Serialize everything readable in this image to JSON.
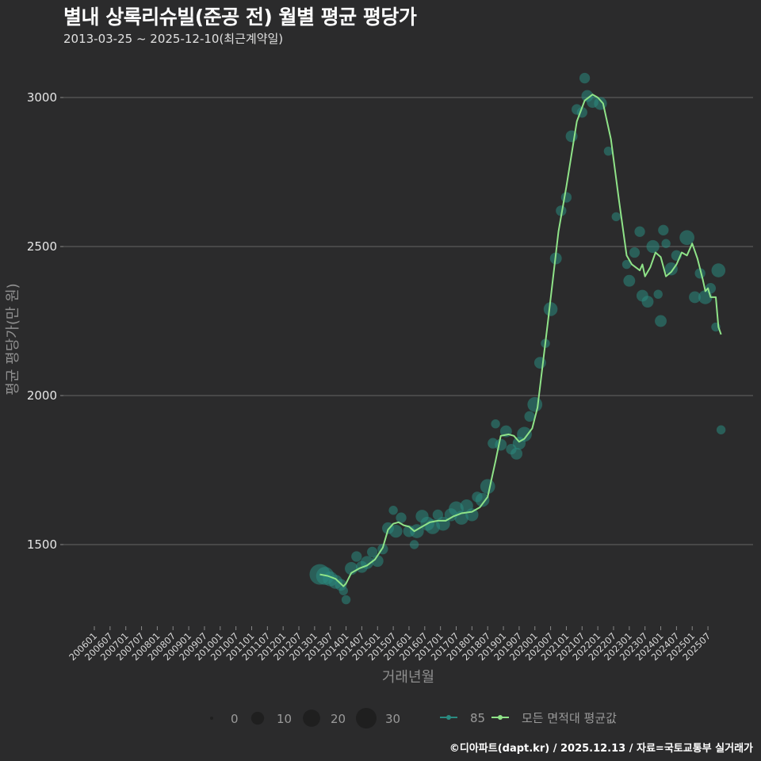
{
  "header": {
    "title": "별내 상록리슈빌(준공 전) 월별 평균 평당가",
    "subtitle": "2013-03-25 ~ 2025-12-10(최근계약일)"
  },
  "caption": "©디아파트(dapt.kr) / 2025.12.13 / 자료=국토교통부 실거래가",
  "colors": {
    "background": "#2b2b2c",
    "grid": "#5a5a5a",
    "avg_line": "#8fe388",
    "points": "#2a8a80"
  },
  "chart_data": {
    "type": "line",
    "title": "별내 상록리슈빌(준공 전) 월별 평균 평당가",
    "subtitle": "2013-03-25 ~ 2025-12-10(최근계약일)",
    "xlabel": "거래년월",
    "ylabel": "평균 평당가(만 원)",
    "ylim": [
      1260,
      3130
    ],
    "yticks": [
      1500,
      2000,
      2500,
      3000
    ],
    "grid": "horizontal major",
    "legend_position": "bottom",
    "xtick_labels": [
      "200601",
      "200607",
      "200701",
      "200707",
      "200801",
      "200807",
      "200901",
      "200907",
      "201001",
      "201007",
      "201101",
      "201107",
      "201201",
      "201207",
      "201301",
      "201307",
      "201401",
      "201407",
      "201501",
      "201507",
      "201601",
      "201607",
      "201701",
      "201707",
      "201801",
      "201807",
      "201901",
      "201907",
      "202001",
      "202007",
      "202101",
      "202107",
      "202201",
      "202207",
      "202301",
      "202307",
      "202401",
      "202407",
      "202501",
      "202507"
    ],
    "size_legend": {
      "title": "",
      "values": [
        0,
        10,
        20,
        30
      ]
    },
    "color_legend": [
      {
        "label": "85",
        "color": "#2a8a80"
      },
      {
        "label": "모든 면적대 평균값",
        "color": "#8fe388"
      }
    ],
    "series": [
      {
        "name": "모든 면적대 평균값",
        "type": "line",
        "x": [
          "2013-03",
          "2013-06",
          "2013-09",
          "2013-12",
          "2014-01",
          "2014-03",
          "2014-06",
          "2014-09",
          "2014-12",
          "2015-03",
          "2015-05",
          "2015-07",
          "2015-09",
          "2015-11",
          "2016-01",
          "2016-03",
          "2016-06",
          "2016-09",
          "2016-12",
          "2017-03",
          "2017-06",
          "2017-09",
          "2018-01",
          "2018-04",
          "2018-07",
          "2018-10",
          "2018-12",
          "2019-03",
          "2019-05",
          "2019-07",
          "2019-09",
          "2019-12",
          "2020-02",
          "2020-06",
          "2020-10",
          "2021-01",
          "2021-05",
          "2021-08",
          "2021-11",
          "2022-01",
          "2022-03",
          "2022-06",
          "2022-09",
          "2022-12",
          "2023-02",
          "2023-05",
          "2023-06",
          "2023-07",
          "2023-09",
          "2023-11",
          "2024-01",
          "2024-03",
          "2024-05",
          "2024-07",
          "2024-09",
          "2024-11",
          "2025-01",
          "2025-03",
          "2025-05",
          "2025-06",
          "2025-07",
          "2025-08",
          "2025-10",
          "2025-11",
          "2025-12"
        ],
        "values": [
          1400,
          1395,
          1385,
          1360,
          1370,
          1405,
          1420,
          1430,
          1450,
          1490,
          1550,
          1570,
          1575,
          1565,
          1560,
          1545,
          1560,
          1575,
          1580,
          1580,
          1595,
          1605,
          1610,
          1625,
          1660,
          1780,
          1865,
          1870,
          1865,
          1845,
          1855,
          1890,
          1960,
          2250,
          2550,
          2700,
          2920,
          2990,
          3010,
          3000,
          2980,
          2860,
          2660,
          2470,
          2440,
          2420,
          2440,
          2400,
          2430,
          2480,
          2465,
          2400,
          2415,
          2440,
          2480,
          2470,
          2510,
          2460,
          2390,
          2350,
          2360,
          2330,
          2330,
          2230,
          2205
        ]
      },
      {
        "name": "85",
        "type": "scatter",
        "points": [
          {
            "x": "2013-03",
            "y": 1400,
            "n": 30
          },
          {
            "x": "2013-05",
            "y": 1395,
            "n": 22
          },
          {
            "x": "2013-07",
            "y": 1385,
            "n": 14
          },
          {
            "x": "2013-09",
            "y": 1375,
            "n": 12
          },
          {
            "x": "2013-11",
            "y": 1365,
            "n": 8
          },
          {
            "x": "2013-12",
            "y": 1345,
            "n": 4
          },
          {
            "x": "2014-01",
            "y": 1315,
            "n": 4
          },
          {
            "x": "2014-03",
            "y": 1420,
            "n": 10
          },
          {
            "x": "2014-05",
            "y": 1460,
            "n": 6
          },
          {
            "x": "2014-07",
            "y": 1425,
            "n": 8
          },
          {
            "x": "2014-09",
            "y": 1440,
            "n": 10
          },
          {
            "x": "2014-11",
            "y": 1475,
            "n": 6
          },
          {
            "x": "2015-01",
            "y": 1445,
            "n": 8
          },
          {
            "x": "2015-03",
            "y": 1485,
            "n": 6
          },
          {
            "x": "2015-05",
            "y": 1555,
            "n": 8
          },
          {
            "x": "2015-07",
            "y": 1615,
            "n": 4
          },
          {
            "x": "2015-08",
            "y": 1545,
            "n": 10
          },
          {
            "x": "2015-10",
            "y": 1590,
            "n": 6
          },
          {
            "x": "2016-01",
            "y": 1545,
            "n": 8
          },
          {
            "x": "2016-03",
            "y": 1500,
            "n": 4
          },
          {
            "x": "2016-04",
            "y": 1545,
            "n": 12
          },
          {
            "x": "2016-06",
            "y": 1595,
            "n": 10
          },
          {
            "x": "2016-08",
            "y": 1570,
            "n": 12
          },
          {
            "x": "2016-10",
            "y": 1560,
            "n": 14
          },
          {
            "x": "2016-12",
            "y": 1600,
            "n": 6
          },
          {
            "x": "2017-02",
            "y": 1570,
            "n": 12
          },
          {
            "x": "2017-05",
            "y": 1600,
            "n": 10
          },
          {
            "x": "2017-07",
            "y": 1620,
            "n": 14
          },
          {
            "x": "2017-09",
            "y": 1590,
            "n": 12
          },
          {
            "x": "2017-11",
            "y": 1630,
            "n": 10
          },
          {
            "x": "2018-01",
            "y": 1600,
            "n": 10
          },
          {
            "x": "2018-03",
            "y": 1660,
            "n": 6
          },
          {
            "x": "2018-05",
            "y": 1650,
            "n": 12
          },
          {
            "x": "2018-07",
            "y": 1695,
            "n": 14
          },
          {
            "x": "2018-09",
            "y": 1840,
            "n": 6
          },
          {
            "x": "2018-10",
            "y": 1905,
            "n": 4
          },
          {
            "x": "2018-12",
            "y": 1835,
            "n": 8
          },
          {
            "x": "2019-02",
            "y": 1880,
            "n": 8
          },
          {
            "x": "2019-04",
            "y": 1820,
            "n": 6
          },
          {
            "x": "2019-06",
            "y": 1805,
            "n": 8
          },
          {
            "x": "2019-07",
            "y": 1840,
            "n": 10
          },
          {
            "x": "2019-09",
            "y": 1870,
            "n": 14
          },
          {
            "x": "2019-11",
            "y": 1930,
            "n": 6
          },
          {
            "x": "2020-01",
            "y": 1970,
            "n": 14
          },
          {
            "x": "2020-03",
            "y": 2110,
            "n": 8
          },
          {
            "x": "2020-05",
            "y": 2175,
            "n": 4
          },
          {
            "x": "2020-07",
            "y": 2290,
            "n": 12
          },
          {
            "x": "2020-09",
            "y": 2460,
            "n": 8
          },
          {
            "x": "2020-11",
            "y": 2620,
            "n": 6
          },
          {
            "x": "2021-01",
            "y": 2665,
            "n": 6
          },
          {
            "x": "2021-03",
            "y": 2870,
            "n": 8
          },
          {
            "x": "2021-05",
            "y": 2960,
            "n": 6
          },
          {
            "x": "2021-07",
            "y": 2950,
            "n": 6
          },
          {
            "x": "2021-08",
            "y": 3065,
            "n": 6
          },
          {
            "x": "2021-09",
            "y": 3005,
            "n": 8
          },
          {
            "x": "2021-11",
            "y": 2985,
            "n": 8
          },
          {
            "x": "2022-02",
            "y": 2980,
            "n": 10
          },
          {
            "x": "2022-05",
            "y": 2820,
            "n": 4
          },
          {
            "x": "2022-08",
            "y": 2600,
            "n": 4
          },
          {
            "x": "2022-12",
            "y": 2440,
            "n": 4
          },
          {
            "x": "2023-01",
            "y": 2385,
            "n": 8
          },
          {
            "x": "2023-03",
            "y": 2480,
            "n": 6
          },
          {
            "x": "2023-05",
            "y": 2550,
            "n": 6
          },
          {
            "x": "2023-06",
            "y": 2335,
            "n": 8
          },
          {
            "x": "2023-08",
            "y": 2315,
            "n": 8
          },
          {
            "x": "2023-10",
            "y": 2500,
            "n": 10
          },
          {
            "x": "2023-12",
            "y": 2340,
            "n": 4
          },
          {
            "x": "2024-01",
            "y": 2250,
            "n": 8
          },
          {
            "x": "2024-02",
            "y": 2555,
            "n": 6
          },
          {
            "x": "2024-03",
            "y": 2510,
            "n": 4
          },
          {
            "x": "2024-05",
            "y": 2425,
            "n": 10
          },
          {
            "x": "2024-07",
            "y": 2470,
            "n": 6
          },
          {
            "x": "2024-11",
            "y": 2530,
            "n": 14
          },
          {
            "x": "2025-02",
            "y": 2330,
            "n": 8
          },
          {
            "x": "2025-04",
            "y": 2410,
            "n": 6
          },
          {
            "x": "2025-06",
            "y": 2330,
            "n": 12
          },
          {
            "x": "2025-08",
            "y": 2360,
            "n": 6
          },
          {
            "x": "2025-10",
            "y": 2230,
            "n": 4
          },
          {
            "x": "2025-11",
            "y": 2420,
            "n": 12
          },
          {
            "x": "2025-12",
            "y": 1885,
            "n": 4
          }
        ]
      }
    ]
  },
  "legend": {
    "size_values": [
      "0",
      "10",
      "20",
      "30"
    ],
    "color_items": [
      "85",
      "모든 면적대 평균값"
    ]
  }
}
